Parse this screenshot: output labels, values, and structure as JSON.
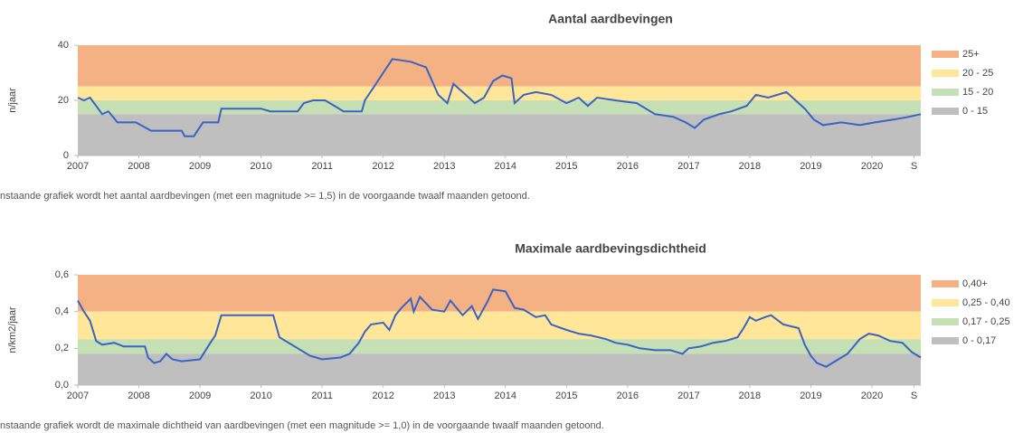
{
  "chart_data": [
    {
      "type": "line",
      "title": "Aantal aardbevingen",
      "ylabel": "n/jaar",
      "caption": "nstaande grafiek wordt het aantal aardbevingen (met een magnitude >= 1,5) in de voorgaande twaalf maanden getoond.",
      "color": "#3a63c4",
      "xlim": [
        2007,
        2020.8
      ],
      "xticks": [
        2007,
        2008,
        2009,
        2010,
        2011,
        2012,
        2013,
        2014,
        2015,
        2016,
        2017,
        2018,
        2019,
        2020,
        {
          "value": 2020.69,
          "label": "S"
        }
      ],
      "ylim": [
        0,
        40
      ],
      "yticks": [
        0,
        20,
        40
      ],
      "bands": [
        {
          "label": "25+",
          "from": 25,
          "color": "#f4b183"
        },
        {
          "label": "20 - 25",
          "from": 20,
          "color": "#ffe699"
        },
        {
          "label": "15 - 20",
          "from": 15,
          "color": "#c5e0b4"
        },
        {
          "label": "0 - 15",
          "from": 0,
          "color": "#bfbfbf"
        }
      ],
      "x": [
        2007.0,
        2007.1,
        2007.2,
        2007.3,
        2007.4,
        2007.5,
        2007.65,
        2007.95,
        2008.2,
        2008.7,
        2008.75,
        2008.9,
        2009.05,
        2009.3,
        2009.35,
        2010.0,
        2010.15,
        2010.6,
        2010.7,
        2010.85,
        2011.05,
        2011.2,
        2011.35,
        2011.65,
        2011.7,
        2011.85,
        2012.0,
        2012.15,
        2012.45,
        2012.7,
        2012.78,
        2012.9,
        2013.05,
        2013.15,
        2013.35,
        2013.5,
        2013.65,
        2013.8,
        2013.95,
        2014.1,
        2014.15,
        2014.3,
        2014.5,
        2014.75,
        2015.0,
        2015.2,
        2015.35,
        2015.5,
        2015.8,
        2016.15,
        2016.45,
        2016.75,
        2016.95,
        2017.1,
        2017.25,
        2017.5,
        2017.7,
        2017.95,
        2018.1,
        2018.3,
        2018.6,
        2018.75,
        2018.9,
        2019.05,
        2019.2,
        2019.5,
        2019.8,
        2020.05,
        2020.35,
        2020.6,
        2020.8
      ],
      "values": [
        21,
        20,
        21,
        18,
        15,
        16,
        12,
        12,
        9,
        9,
        7,
        7,
        12,
        12,
        17,
        17,
        16,
        16,
        19,
        20,
        20,
        18,
        16,
        16,
        20,
        25,
        30,
        35,
        34,
        32,
        28,
        22,
        19,
        26,
        22,
        19,
        21,
        27,
        29,
        28,
        19,
        22,
        23,
        22,
        19,
        21,
        18,
        21,
        20,
        19,
        15,
        14,
        12,
        10,
        13,
        15,
        16,
        18,
        22,
        21,
        23,
        20,
        17,
        13,
        11,
        12,
        11,
        12,
        13,
        14,
        15
      ]
    },
    {
      "type": "line",
      "title": "Maximale aardbevingsdichtheid",
      "ylabel": "n/km2/jaar",
      "caption": "nstaande grafiek wordt de maximale dichtheid van aardbevingen (met een magnitude >= 1,0) in de voorgaande twaalf maanden getoond.",
      "color": "#3a63c4",
      "xlim": [
        2007,
        2020.8
      ],
      "xticks": [
        2007,
        2008,
        2009,
        2010,
        2011,
        2012,
        2013,
        2014,
        2015,
        2016,
        2017,
        2018,
        2019,
        2020,
        {
          "value": 2020.69,
          "label": "S"
        }
      ],
      "ylim": [
        0,
        0.6
      ],
      "yticks": [
        {
          "value": 0,
          "label": "0,0"
        },
        {
          "value": 0.2,
          "label": "0,2"
        },
        {
          "value": 0.4,
          "label": "0,4"
        },
        {
          "value": 0.6,
          "label": "0,6"
        }
      ],
      "bands": [
        {
          "label": "0,40+",
          "from": 0.4,
          "color": "#f4b183"
        },
        {
          "label": "0,25 - 0,40",
          "from": 0.25,
          "color": "#ffe699"
        },
        {
          "label": "0,17 - 0,25",
          "from": 0.17,
          "color": "#c5e0b4"
        },
        {
          "label": "0 - 0,17",
          "from": 0,
          "color": "#bfbfbf"
        }
      ],
      "x": [
        2007.0,
        2007.1,
        2007.2,
        2007.3,
        2007.4,
        2007.6,
        2007.75,
        2008.1,
        2008.15,
        2008.25,
        2008.35,
        2008.45,
        2008.55,
        2008.7,
        2009.0,
        2009.15,
        2009.25,
        2009.35,
        2009.9,
        2010.2,
        2010.3,
        2010.45,
        2010.6,
        2010.8,
        2011.0,
        2011.3,
        2011.45,
        2011.6,
        2011.7,
        2011.8,
        2012.0,
        2012.1,
        2012.2,
        2012.3,
        2012.45,
        2012.5,
        2012.6,
        2012.8,
        2013.0,
        2013.1,
        2013.3,
        2013.45,
        2013.55,
        2013.7,
        2013.8,
        2014.0,
        2014.15,
        2014.3,
        2014.5,
        2014.65,
        2014.75,
        2015.0,
        2015.2,
        2015.4,
        2015.65,
        2015.8,
        2016.0,
        2016.2,
        2016.45,
        2016.7,
        2016.9,
        2017.0,
        2017.2,
        2017.4,
        2017.6,
        2017.8,
        2017.9,
        2018.0,
        2018.1,
        2018.25,
        2018.35,
        2018.55,
        2018.8,
        2018.9,
        2019.0,
        2019.1,
        2019.25,
        2019.4,
        2019.6,
        2019.8,
        2019.95,
        2020.1,
        2020.3,
        2020.5,
        2020.65,
        2020.8
      ],
      "values": [
        0.46,
        0.4,
        0.35,
        0.24,
        0.22,
        0.23,
        0.21,
        0.21,
        0.15,
        0.12,
        0.13,
        0.17,
        0.14,
        0.13,
        0.14,
        0.22,
        0.27,
        0.38,
        0.38,
        0.38,
        0.26,
        0.23,
        0.2,
        0.16,
        0.14,
        0.15,
        0.17,
        0.23,
        0.29,
        0.33,
        0.34,
        0.3,
        0.38,
        0.42,
        0.47,
        0.4,
        0.48,
        0.41,
        0.4,
        0.46,
        0.38,
        0.43,
        0.36,
        0.45,
        0.52,
        0.51,
        0.42,
        0.41,
        0.37,
        0.38,
        0.33,
        0.3,
        0.28,
        0.27,
        0.25,
        0.23,
        0.22,
        0.2,
        0.19,
        0.19,
        0.17,
        0.2,
        0.21,
        0.23,
        0.24,
        0.26,
        0.31,
        0.37,
        0.35,
        0.37,
        0.38,
        0.33,
        0.31,
        0.22,
        0.16,
        0.12,
        0.1,
        0.13,
        0.17,
        0.25,
        0.28,
        0.27,
        0.24,
        0.23,
        0.18,
        0.15
      ]
    }
  ]
}
